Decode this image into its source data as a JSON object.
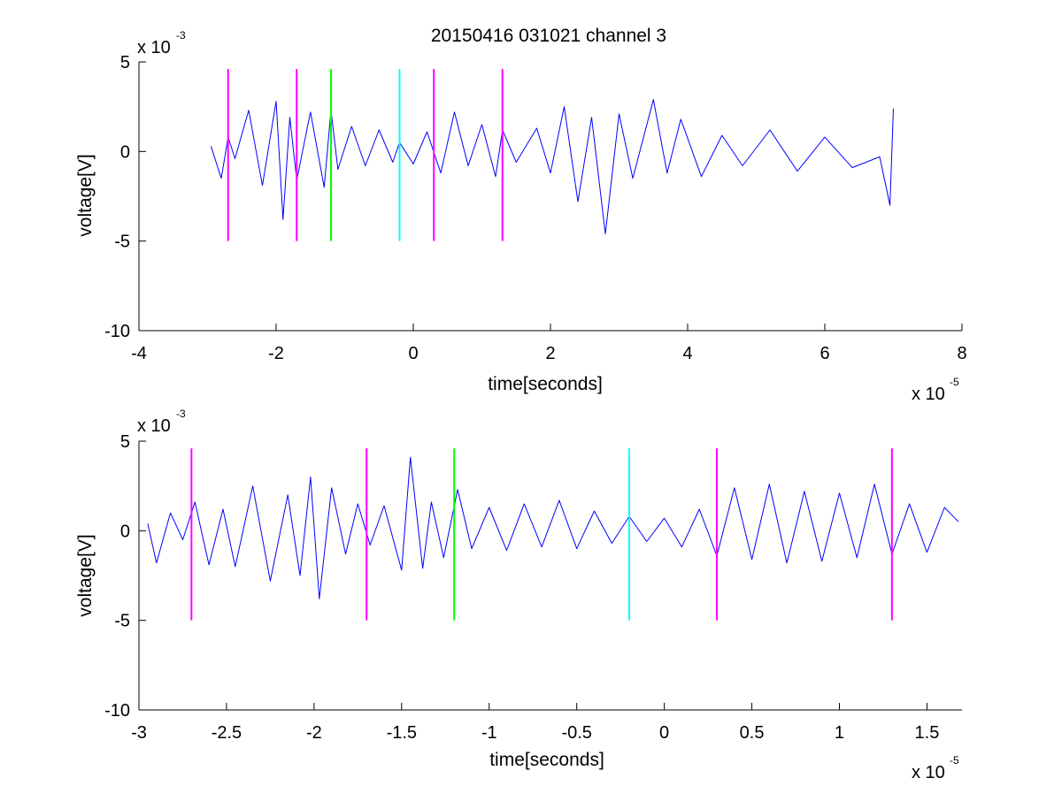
{
  "chart_data": [
    {
      "type": "line",
      "title": "20150416 031021 channel 3",
      "xlabel": "time[seconds]",
      "ylabel": "voltage[V]",
      "x_multiplier": "x 10",
      "x_exponent": "-5",
      "y_multiplier": "x 10",
      "y_exponent": "-3",
      "xlim": [
        -4,
        8
      ],
      "ylim": [
        -10,
        5
      ],
      "x_ticks": [
        -4,
        -2,
        0,
        2,
        4,
        6,
        8
      ],
      "x_tick_labels": [
        "-4",
        "-2",
        "0",
        "2",
        "4",
        "6",
        "8"
      ],
      "y_ticks": [
        -10,
        -5,
        0,
        5
      ],
      "y_tick_labels": [
        "-10",
        "-5",
        "0",
        "5"
      ],
      "grid": false,
      "series": [
        {
          "color": "#0000ff",
          "x": [
            -2.95,
            -2.8,
            -2.7,
            -2.6,
            -2.4,
            -2.2,
            -2.0,
            -1.9,
            -1.8,
            -1.7,
            -1.5,
            -1.3,
            -1.2,
            -1.1,
            -0.9,
            -0.7,
            -0.5,
            -0.3,
            -0.2,
            0.0,
            0.2,
            0.4,
            0.6,
            0.8,
            1.0,
            1.2,
            1.3,
            1.5,
            1.8,
            2.0,
            2.2,
            2.4,
            2.6,
            2.8,
            3.0,
            3.2,
            3.5,
            3.7,
            3.9,
            4.2,
            4.5,
            4.8,
            5.2,
            5.6,
            6.0,
            6.4,
            6.8,
            6.95,
            7.0
          ],
          "y": [
            0.3,
            -1.5,
            0.8,
            -0.4,
            2.3,
            -1.9,
            2.8,
            -3.8,
            1.9,
            -1.6,
            2.2,
            -2.0,
            2.3,
            -1.0,
            1.4,
            -0.8,
            1.2,
            -0.6,
            0.5,
            -0.7,
            1.1,
            -1.2,
            2.2,
            -0.8,
            1.5,
            -1.4,
            1.2,
            -0.6,
            1.3,
            -1.2,
            2.5,
            -2.8,
            1.9,
            -4.6,
            2.1,
            -1.5,
            2.9,
            -1.2,
            1.8,
            -1.4,
            0.9,
            -0.8,
            1.2,
            -1.1,
            0.8,
            -0.9,
            -0.3,
            -3.0,
            2.4
          ]
        }
      ],
      "markers": [
        {
          "x": -2.7,
          "color": "#ff00ff"
        },
        {
          "x": -1.7,
          "color": "#ff00ff"
        },
        {
          "x": -1.2,
          "color": "#00ff00"
        },
        {
          "x": -0.2,
          "color": "#00ffff"
        },
        {
          "x": 0.3,
          "color": "#ff00ff"
        },
        {
          "x": 1.3,
          "color": "#ff00ff"
        }
      ],
      "marker_yrange": [
        -5,
        4.6
      ]
    },
    {
      "type": "line",
      "title": "",
      "xlabel": "time[seconds]",
      "ylabel": "voltage[V]",
      "x_multiplier": "x 10",
      "x_exponent": "-5",
      "y_multiplier": "x 10",
      "y_exponent": "-3",
      "xlim": [
        -3,
        1.7
      ],
      "ylim": [
        -10,
        5
      ],
      "x_ticks": [
        -3,
        -2.5,
        -2,
        -1.5,
        -1,
        -0.5,
        0,
        0.5,
        1,
        1.5
      ],
      "x_tick_labels": [
        "-3",
        "-2.5",
        "-2",
        "-1.5",
        "-1",
        "-0.5",
        "0",
        "0.5",
        "1",
        "1.5"
      ],
      "y_ticks": [
        -10,
        -5,
        0,
        5
      ],
      "y_tick_labels": [
        "-10",
        "-5",
        "0",
        "5"
      ],
      "grid": false,
      "series": [
        {
          "color": "#0000ff",
          "x": [
            -2.95,
            -2.9,
            -2.82,
            -2.75,
            -2.68,
            -2.6,
            -2.52,
            -2.45,
            -2.35,
            -2.25,
            -2.15,
            -2.08,
            -2.02,
            -1.97,
            -1.9,
            -1.82,
            -1.75,
            -1.68,
            -1.6,
            -1.5,
            -1.45,
            -1.38,
            -1.33,
            -1.26,
            -1.18,
            -1.1,
            -1.0,
            -0.9,
            -0.8,
            -0.7,
            -0.6,
            -0.5,
            -0.4,
            -0.3,
            -0.2,
            -0.1,
            0.0,
            0.1,
            0.2,
            0.3,
            0.4,
            0.5,
            0.6,
            0.7,
            0.8,
            0.9,
            1.0,
            1.1,
            1.2,
            1.3,
            1.4,
            1.5,
            1.6,
            1.68
          ],
          "y": [
            0.4,
            -1.8,
            1.0,
            -0.5,
            1.6,
            -1.9,
            1.2,
            -2.0,
            2.5,
            -2.8,
            2.0,
            -2.5,
            3.0,
            -3.8,
            2.4,
            -1.3,
            1.5,
            -0.8,
            1.4,
            -2.2,
            4.1,
            -2.1,
            1.6,
            -1.5,
            2.3,
            -1.0,
            1.3,
            -1.1,
            1.5,
            -0.9,
            1.7,
            -1.0,
            1.1,
            -0.7,
            0.8,
            -0.6,
            0.7,
            -0.9,
            1.2,
            -1.4,
            2.4,
            -1.6,
            2.6,
            -1.8,
            2.2,
            -1.7,
            2.1,
            -1.5,
            2.6,
            -1.3,
            1.5,
            -1.2,
            1.3,
            0.5
          ]
        }
      ],
      "markers": [
        {
          "x": -2.7,
          "color": "#ff00ff"
        },
        {
          "x": -1.7,
          "color": "#ff00ff"
        },
        {
          "x": -1.2,
          "color": "#00ff00"
        },
        {
          "x": -0.2,
          "color": "#00ffff"
        },
        {
          "x": 0.3,
          "color": "#ff00ff"
        },
        {
          "x": 1.3,
          "color": "#ff00ff"
        }
      ],
      "marker_yrange": [
        -5,
        4.6
      ]
    }
  ]
}
